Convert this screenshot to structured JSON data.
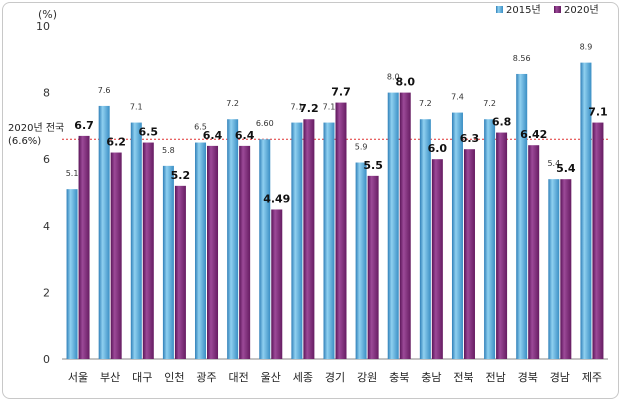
{
  "chart_data": {
    "type": "bar",
    "ylabel": "(%)",
    "ylim": [
      0,
      10
    ],
    "yticks": [
      "0",
      "2",
      "4",
      "6",
      "8",
      "10"
    ],
    "categories": [
      "서울",
      "부산",
      "대구",
      "인천",
      "광주",
      "대전",
      "울산",
      "세종",
      "경기",
      "강원",
      "충북",
      "충남",
      "전북",
      "전남",
      "경북",
      "경남",
      "제주"
    ],
    "series": [
      {
        "name": "2015년",
        "color": "#4a9fd0",
        "values": [
          5.1,
          7.6,
          7.1,
          5.8,
          6.5,
          7.2,
          6.6,
          7.1,
          7.1,
          5.9,
          8.0,
          7.2,
          7.4,
          7.2,
          8.56,
          5.4,
          8.9
        ],
        "labels": [
          "5.1",
          "7.6",
          "7.1",
          "5.8",
          "6.5",
          "7.2",
          "6.60",
          "7.1",
          "7.1",
          "5.9",
          "8.0",
          "7.2",
          "7.4",
          "7.2",
          "8.56",
          "5.4",
          "8.9"
        ]
      },
      {
        "name": "2020년",
        "color": "#7a2a78",
        "values": [
          6.7,
          6.2,
          6.5,
          5.2,
          6.4,
          6.4,
          4.49,
          7.2,
          7.7,
          5.5,
          8.0,
          6.0,
          6.3,
          6.8,
          6.42,
          5.4,
          7.1
        ],
        "labels": [
          "6.7",
          "6.2",
          "6.5",
          "5.2",
          "6.4",
          "6.4",
          "4.49",
          "7.2",
          "7.7",
          "5.5",
          "8.0",
          "6.0",
          "6.3",
          "6.8",
          "6.42",
          "5.4",
          "7.1"
        ]
      }
    ],
    "reference_line": {
      "value": 6.6,
      "label_line1": "2020년 전국",
      "label_line2": "(6.6%)",
      "color": "#e03030"
    },
    "legend_position": "top-right",
    "grid": false
  }
}
